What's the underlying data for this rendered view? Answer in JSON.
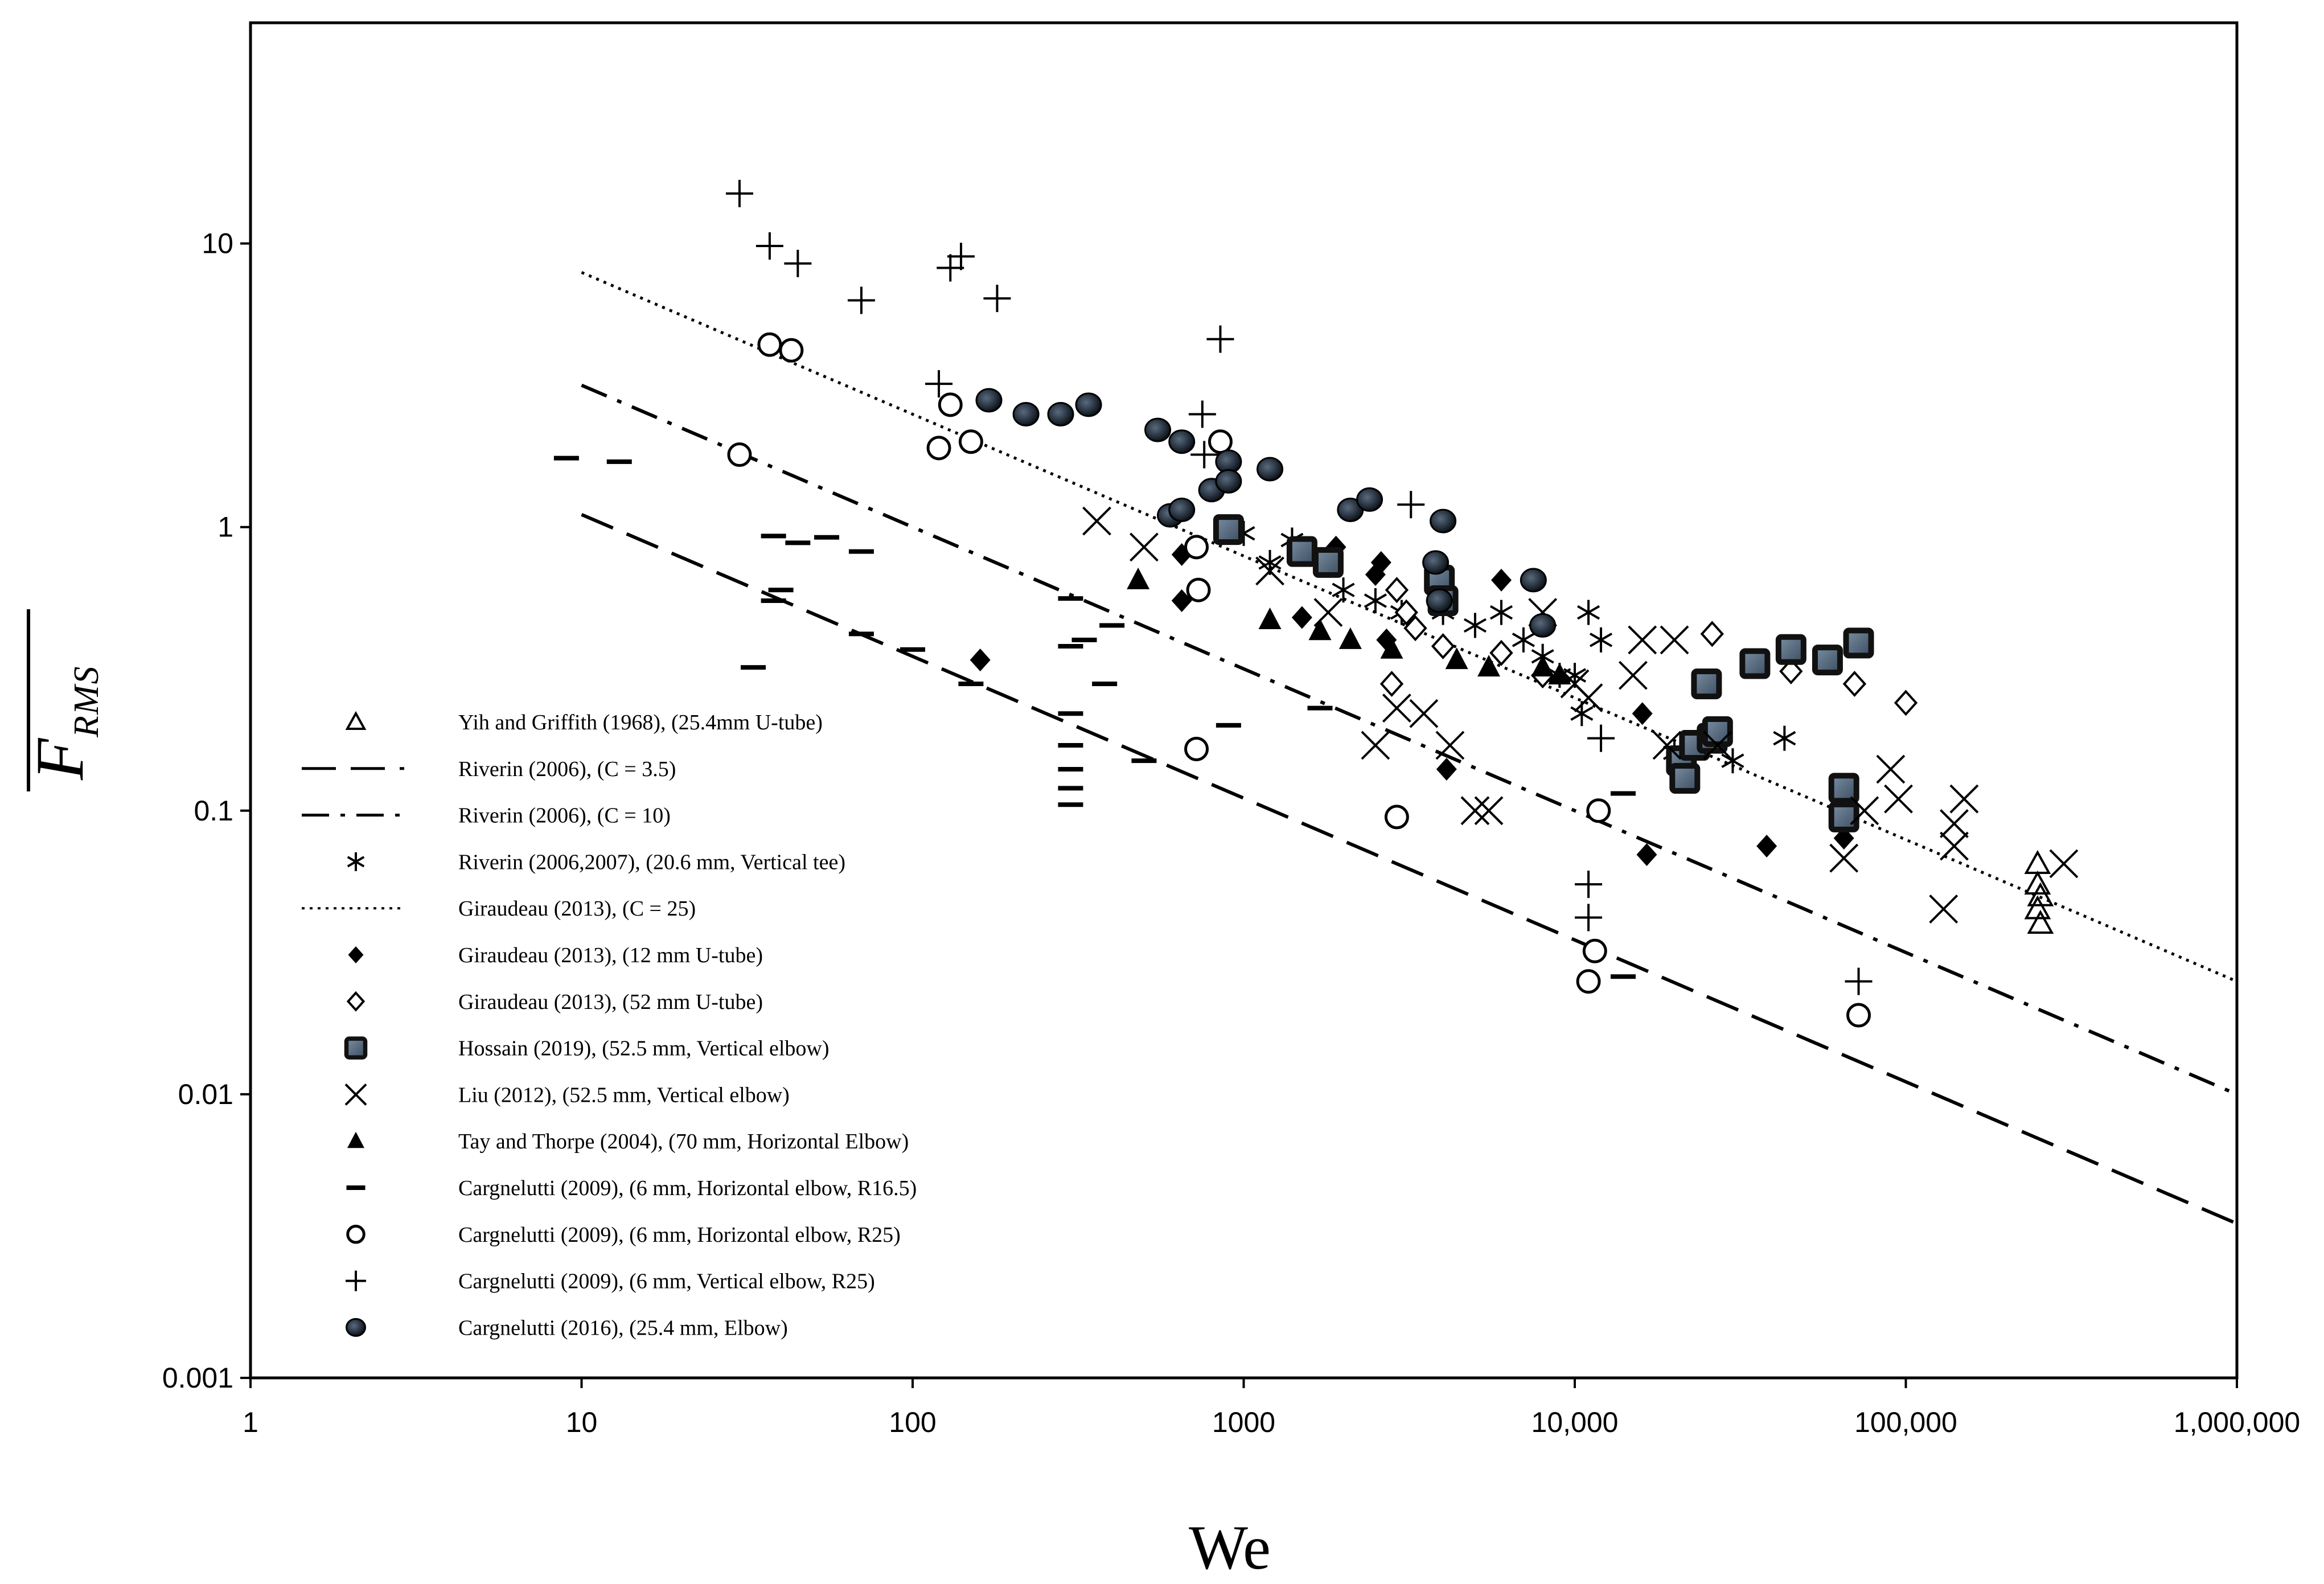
{
  "chart_data": {
    "type": "scatter",
    "xlabel": "We",
    "ylabel": "F_RMS",
    "x_scale": "log",
    "y_scale": "log",
    "xlim": [
      1,
      1000000
    ],
    "ylim": [
      0.001,
      60
    ],
    "x_ticks": [
      1,
      10,
      100,
      1000,
      10000,
      100000,
      1000000
    ],
    "x_tick_labels": [
      "1",
      "10",
      "100",
      "1000",
      "10,000",
      "100,000",
      "1,000,000"
    ],
    "y_ticks": [
      0.001,
      0.01,
      0.1,
      1,
      10
    ],
    "y_tick_labels": [
      "0.001",
      "0.01",
      "0.1",
      "1",
      "10"
    ],
    "grid": false,
    "legend_position": "bottom-left",
    "lines": [
      {
        "name": "Riverin (2006), (C = 3.5)",
        "style": "dashed",
        "C": 3.5,
        "x_range": [
          10,
          1000000
        ]
      },
      {
        "name": "Riverin (2006), (C = 10)",
        "style": "dashdot",
        "C": 10,
        "x_range": [
          10,
          1000000
        ]
      },
      {
        "name": "Giraudeau (2013), (C = 25)",
        "style": "dotted",
        "C": 25,
        "x_range": [
          10,
          1000000
        ]
      }
    ],
    "series": [
      {
        "name": "Yih and Griffith (1968), (25.4mm U-tube)",
        "marker": "triangle-open",
        "points": [
          [
            250000,
            0.065
          ],
          [
            250000,
            0.055
          ],
          [
            255000,
            0.05
          ],
          [
            250000,
            0.045
          ],
          [
            255000,
            0.04
          ]
        ]
      },
      {
        "name": "Riverin (2006,2007), (20.6 mm, Vertical tee)",
        "marker": "asterisk",
        "points": [
          [
            1000,
            0.95
          ],
          [
            1200,
            0.75
          ],
          [
            1400,
            0.9
          ],
          [
            2000,
            0.6
          ],
          [
            2500,
            0.55
          ],
          [
            3000,
            0.5
          ],
          [
            4000,
            0.5
          ],
          [
            5000,
            0.45
          ],
          [
            6000,
            0.5
          ],
          [
            7000,
            0.4
          ],
          [
            8000,
            0.35
          ],
          [
            9000,
            0.3
          ],
          [
            10000,
            0.3
          ],
          [
            11000,
            0.5
          ],
          [
            12000,
            0.4
          ],
          [
            10500,
            0.22
          ],
          [
            20000,
            0.16
          ],
          [
            30000,
            0.15
          ],
          [
            43000,
            0.18
          ]
        ]
      },
      {
        "name": "Giraudeau (2013), (12 mm U-tube)",
        "marker": "diamond-filled",
        "points": [
          [
            160,
            0.34
          ],
          [
            650,
            0.8
          ],
          [
            650,
            0.55
          ],
          [
            1500,
            0.48
          ],
          [
            1900,
            0.85
          ],
          [
            2600,
            0.75
          ],
          [
            2500,
            0.68
          ],
          [
            2700,
            0.4
          ],
          [
            4100,
            0.14
          ],
          [
            6000,
            0.65
          ],
          [
            16000,
            0.22
          ],
          [
            16500,
            0.07
          ],
          [
            38000,
            0.075
          ],
          [
            65000,
            0.08
          ]
        ]
      },
      {
        "name": "Giraudeau (2013), (52 mm U-tube)",
        "marker": "diamond-open",
        "points": [
          [
            2800,
            0.28
          ],
          [
            2900,
            0.6
          ],
          [
            3100,
            0.5
          ],
          [
            3300,
            0.44
          ],
          [
            4000,
            0.38
          ],
          [
            6000,
            0.36
          ],
          [
            8000,
            0.3
          ],
          [
            26000,
            0.42
          ],
          [
            45000,
            0.31
          ],
          [
            70000,
            0.28
          ],
          [
            100000,
            0.24
          ]
        ]
      },
      {
        "name": "Hossain (2019), (52.5 mm, Vertical elbow)",
        "marker": "square-filled",
        "points": [
          [
            900,
            0.98
          ],
          [
            1500,
            0.82
          ],
          [
            1800,
            0.75
          ],
          [
            3900,
            0.65
          ],
          [
            4000,
            0.55
          ],
          [
            25000,
            0.28
          ],
          [
            21000,
            0.15
          ],
          [
            21500,
            0.13
          ],
          [
            23000,
            0.17
          ],
          [
            26000,
            0.18
          ],
          [
            27000,
            0.19
          ],
          [
            35000,
            0.33
          ],
          [
            45000,
            0.37
          ],
          [
            58000,
            0.34
          ],
          [
            72000,
            0.39
          ],
          [
            65000,
            0.12
          ],
          [
            65000,
            0.095
          ]
        ]
      },
      {
        "name": "Liu (2012), (52.5 mm, Vertical elbow)",
        "marker": "x",
        "points": [
          [
            360,
            1.05
          ],
          [
            500,
            0.85
          ],
          [
            1200,
            0.7
          ],
          [
            1800,
            0.5
          ],
          [
            2500,
            0.17
          ],
          [
            2900,
            0.23
          ],
          [
            3500,
            0.22
          ],
          [
            4200,
            0.17
          ],
          [
            5000,
            0.1
          ],
          [
            5500,
            0.1
          ],
          [
            8000,
            0.5
          ],
          [
            10000,
            0.28
          ],
          [
            11000,
            0.25
          ],
          [
            15000,
            0.3
          ],
          [
            16000,
            0.4
          ],
          [
            20000,
            0.4
          ],
          [
            19000,
            0.17
          ],
          [
            27000,
            0.17
          ],
          [
            65000,
            0.068
          ],
          [
            75000,
            0.1
          ],
          [
            90000,
            0.14
          ],
          [
            95000,
            0.11
          ],
          [
            130000,
            0.045
          ],
          [
            140000,
            0.09
          ],
          [
            140000,
            0.075
          ],
          [
            150000,
            0.11
          ],
          [
            300000,
            0.065
          ]
        ]
      },
      {
        "name": "Tay and Thorpe (2004), (70 mm, Horizontal Elbow)",
        "marker": "triangle-filled",
        "points": [
          [
            480,
            0.65
          ],
          [
            1200,
            0.47
          ],
          [
            1700,
            0.43
          ],
          [
            2100,
            0.4
          ],
          [
            2800,
            0.37
          ],
          [
            4400,
            0.34
          ],
          [
            5500,
            0.32
          ],
          [
            8000,
            0.32
          ],
          [
            9000,
            0.3
          ]
        ]
      },
      {
        "name": "Cargnelutti (2009), (6 mm, Horizontal elbow, R16.5)",
        "marker": "dash",
        "points": [
          [
            9,
            1.75
          ],
          [
            13,
            1.7
          ],
          [
            33,
            0.32
          ],
          [
            38,
            0.93
          ],
          [
            38,
            0.55
          ],
          [
            40,
            0.6
          ],
          [
            45,
            0.88
          ],
          [
            55,
            0.92
          ],
          [
            70,
            0.82
          ],
          [
            70,
            0.42
          ],
          [
            100,
            0.37
          ],
          [
            150,
            0.28
          ],
          [
            300,
            0.56
          ],
          [
            300,
            0.38
          ],
          [
            300,
            0.22
          ],
          [
            300,
            0.17
          ],
          [
            300,
            0.14
          ],
          [
            300,
            0.12
          ],
          [
            300,
            0.105
          ],
          [
            330,
            0.4
          ],
          [
            380,
            0.28
          ],
          [
            400,
            0.45
          ],
          [
            500,
            0.15
          ],
          [
            900,
            0.2
          ],
          [
            1700,
            0.23
          ],
          [
            14000,
            0.115
          ],
          [
            14000,
            0.026
          ]
        ]
      },
      {
        "name": "Cargnelutti (2009), (6 mm, Horizontal elbow, R25)",
        "marker": "circle-open",
        "points": [
          [
            30,
            1.8
          ],
          [
            37,
            4.4
          ],
          [
            43,
            4.2
          ],
          [
            120,
            1.9
          ],
          [
            130,
            2.7
          ],
          [
            150,
            2.0
          ],
          [
            720,
            0.85
          ],
          [
            730,
            0.6
          ],
          [
            720,
            0.165
          ],
          [
            850,
            2.0
          ],
          [
            2900,
            0.095
          ],
          [
            11500,
            0.032
          ],
          [
            11000,
            0.025
          ],
          [
            11800,
            0.1
          ],
          [
            72000,
            0.019
          ]
        ]
      },
      {
        "name": "Cargnelutti (2009), (6 mm, Vertical elbow, R25)",
        "marker": "plus",
        "points": [
          [
            30,
            15
          ],
          [
            37,
            9.8
          ],
          [
            45,
            8.5
          ],
          [
            70,
            6.3
          ],
          [
            120,
            3.2
          ],
          [
            130,
            8.2
          ],
          [
            140,
            9.0
          ],
          [
            180,
            6.4
          ],
          [
            750,
            2.5
          ],
          [
            760,
            1.8
          ],
          [
            850,
            4.6
          ],
          [
            3200,
            1.2
          ],
          [
            11000,
            0.055
          ],
          [
            11000,
            0.042
          ],
          [
            12000,
            0.18
          ],
          [
            72000,
            0.025
          ]
        ]
      },
      {
        "name": "Cargnelutti (2016), (25.4 mm, Elbow)",
        "marker": "ellipse-filled",
        "points": [
          [
            170,
            2.8
          ],
          [
            220,
            2.5
          ],
          [
            280,
            2.5
          ],
          [
            340,
            2.7
          ],
          [
            550,
            2.2
          ],
          [
            650,
            2.0
          ],
          [
            600,
            1.1
          ],
          [
            650,
            1.15
          ],
          [
            800,
            1.35
          ],
          [
            900,
            1.7
          ],
          [
            900,
            1.45
          ],
          [
            1200,
            1.6
          ],
          [
            2100,
            1.15
          ],
          [
            2400,
            1.25
          ],
          [
            4000,
            1.05
          ],
          [
            3800,
            0.75
          ],
          [
            3900,
            0.55
          ],
          [
            7500,
            0.65
          ],
          [
            8000,
            0.45
          ]
        ]
      }
    ]
  }
}
